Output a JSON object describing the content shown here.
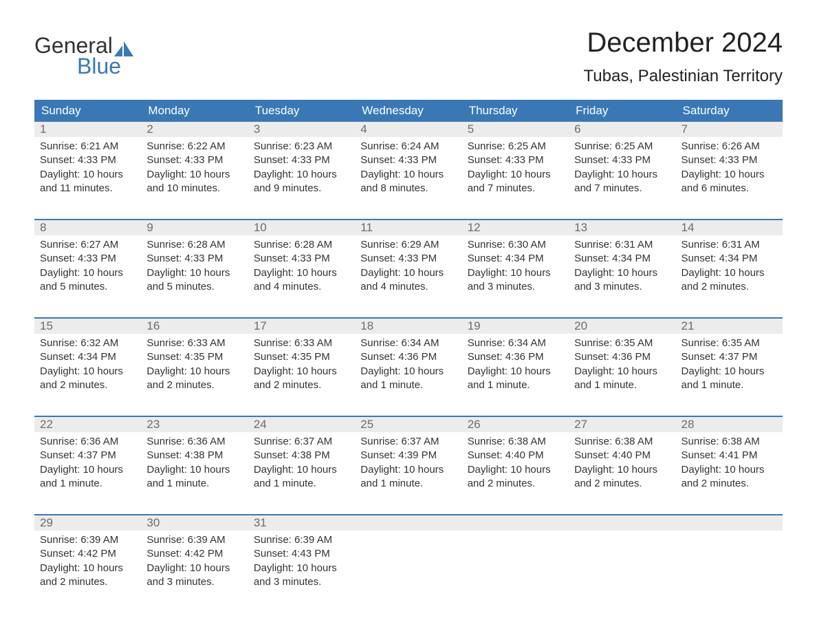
{
  "brand": {
    "word1": "General",
    "word2": "Blue",
    "accent_color": "#3a78b5"
  },
  "title": "December 2024",
  "location": "Tubas, Palestinian Territory",
  "columns": [
    "Sunday",
    "Monday",
    "Tuesday",
    "Wednesday",
    "Thursday",
    "Friday",
    "Saturday"
  ],
  "colors": {
    "header_bg": "#3a78b5",
    "header_fg": "#ffffff",
    "daynum_bg": "#ececec",
    "daynum_fg": "#6b6b6b",
    "text": "#333333",
    "background": "#ffffff"
  },
  "labels": {
    "sunrise": "Sunrise:",
    "sunset": "Sunset:",
    "daylight": "Daylight:"
  },
  "weeks": [
    [
      {
        "n": "1",
        "sr": "6:21 AM",
        "ss": "4:33 PM",
        "dl": "10 hours and 11 minutes."
      },
      {
        "n": "2",
        "sr": "6:22 AM",
        "ss": "4:33 PM",
        "dl": "10 hours and 10 minutes."
      },
      {
        "n": "3",
        "sr": "6:23 AM",
        "ss": "4:33 PM",
        "dl": "10 hours and 9 minutes."
      },
      {
        "n": "4",
        "sr": "6:24 AM",
        "ss": "4:33 PM",
        "dl": "10 hours and 8 minutes."
      },
      {
        "n": "5",
        "sr": "6:25 AM",
        "ss": "4:33 PM",
        "dl": "10 hours and 7 minutes."
      },
      {
        "n": "6",
        "sr": "6:25 AM",
        "ss": "4:33 PM",
        "dl": "10 hours and 7 minutes."
      },
      {
        "n": "7",
        "sr": "6:26 AM",
        "ss": "4:33 PM",
        "dl": "10 hours and 6 minutes."
      }
    ],
    [
      {
        "n": "8",
        "sr": "6:27 AM",
        "ss": "4:33 PM",
        "dl": "10 hours and 5 minutes."
      },
      {
        "n": "9",
        "sr": "6:28 AM",
        "ss": "4:33 PM",
        "dl": "10 hours and 5 minutes."
      },
      {
        "n": "10",
        "sr": "6:28 AM",
        "ss": "4:33 PM",
        "dl": "10 hours and 4 minutes."
      },
      {
        "n": "11",
        "sr": "6:29 AM",
        "ss": "4:33 PM",
        "dl": "10 hours and 4 minutes."
      },
      {
        "n": "12",
        "sr": "6:30 AM",
        "ss": "4:34 PM",
        "dl": "10 hours and 3 minutes."
      },
      {
        "n": "13",
        "sr": "6:31 AM",
        "ss": "4:34 PM",
        "dl": "10 hours and 3 minutes."
      },
      {
        "n": "14",
        "sr": "6:31 AM",
        "ss": "4:34 PM",
        "dl": "10 hours and 2 minutes."
      }
    ],
    [
      {
        "n": "15",
        "sr": "6:32 AM",
        "ss": "4:34 PM",
        "dl": "10 hours and 2 minutes."
      },
      {
        "n": "16",
        "sr": "6:33 AM",
        "ss": "4:35 PM",
        "dl": "10 hours and 2 minutes."
      },
      {
        "n": "17",
        "sr": "6:33 AM",
        "ss": "4:35 PM",
        "dl": "10 hours and 2 minutes."
      },
      {
        "n": "18",
        "sr": "6:34 AM",
        "ss": "4:36 PM",
        "dl": "10 hours and 1 minute."
      },
      {
        "n": "19",
        "sr": "6:34 AM",
        "ss": "4:36 PM",
        "dl": "10 hours and 1 minute."
      },
      {
        "n": "20",
        "sr": "6:35 AM",
        "ss": "4:36 PM",
        "dl": "10 hours and 1 minute."
      },
      {
        "n": "21",
        "sr": "6:35 AM",
        "ss": "4:37 PM",
        "dl": "10 hours and 1 minute."
      }
    ],
    [
      {
        "n": "22",
        "sr": "6:36 AM",
        "ss": "4:37 PM",
        "dl": "10 hours and 1 minute."
      },
      {
        "n": "23",
        "sr": "6:36 AM",
        "ss": "4:38 PM",
        "dl": "10 hours and 1 minute."
      },
      {
        "n": "24",
        "sr": "6:37 AM",
        "ss": "4:38 PM",
        "dl": "10 hours and 1 minute."
      },
      {
        "n": "25",
        "sr": "6:37 AM",
        "ss": "4:39 PM",
        "dl": "10 hours and 1 minute."
      },
      {
        "n": "26",
        "sr": "6:38 AM",
        "ss": "4:40 PM",
        "dl": "10 hours and 2 minutes."
      },
      {
        "n": "27",
        "sr": "6:38 AM",
        "ss": "4:40 PM",
        "dl": "10 hours and 2 minutes."
      },
      {
        "n": "28",
        "sr": "6:38 AM",
        "ss": "4:41 PM",
        "dl": "10 hours and 2 minutes."
      }
    ],
    [
      {
        "n": "29",
        "sr": "6:39 AM",
        "ss": "4:42 PM",
        "dl": "10 hours and 2 minutes."
      },
      {
        "n": "30",
        "sr": "6:39 AM",
        "ss": "4:42 PM",
        "dl": "10 hours and 3 minutes."
      },
      {
        "n": "31",
        "sr": "6:39 AM",
        "ss": "4:43 PM",
        "dl": "10 hours and 3 minutes."
      },
      null,
      null,
      null,
      null
    ]
  ]
}
